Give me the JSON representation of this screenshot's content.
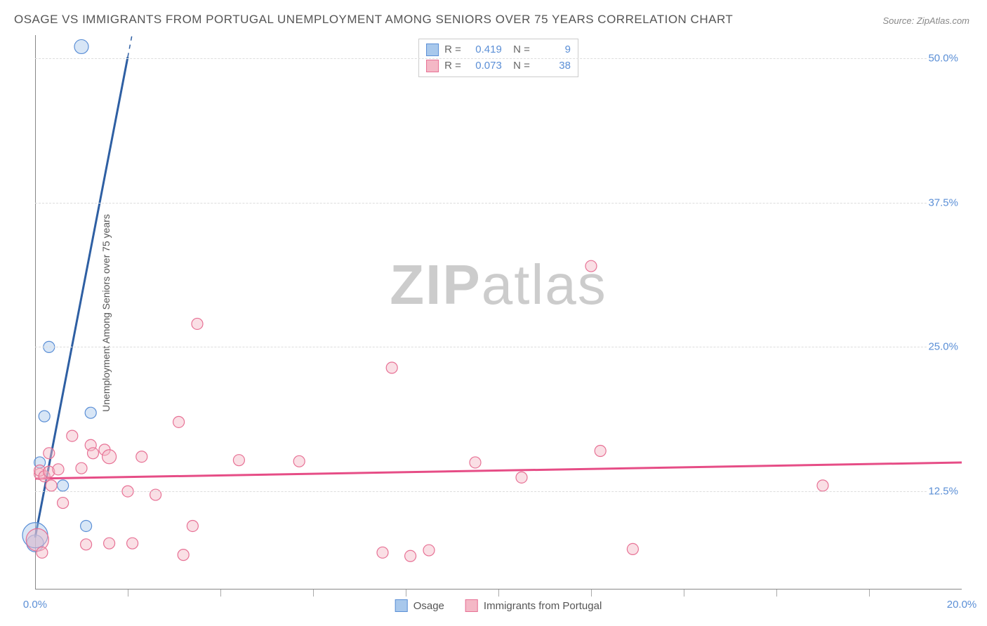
{
  "title": "OSAGE VS IMMIGRANTS FROM PORTUGAL UNEMPLOYMENT AMONG SENIORS OVER 75 YEARS CORRELATION CHART",
  "source": "Source: ZipAtlas.com",
  "ylabel": "Unemployment Among Seniors over 75 years",
  "watermark_a": "ZIP",
  "watermark_b": "atlas",
  "chart": {
    "type": "scatter",
    "xlim": [
      0,
      20
    ],
    "ylim": [
      4,
      52
    ],
    "x_ticks_major": [
      0,
      20
    ],
    "x_ticks_major_labels": [
      "0.0%",
      "20.0%"
    ],
    "x_ticks_minor": [
      2,
      4,
      6,
      8,
      10,
      12,
      14,
      16,
      18
    ],
    "y_ticks": [
      12.5,
      25.0,
      37.5,
      50.0
    ],
    "y_tick_labels": [
      "12.5%",
      "25.0%",
      "37.5%",
      "50.0%"
    ],
    "grid_color": "#dddddd",
    "axis_color": "#888888",
    "tick_label_color": "#5b8fd6",
    "background_color": "#ffffff",
    "series": [
      {
        "name": "Osage",
        "color_fill": "#a8c8ec",
        "color_stroke": "#5b8fd6",
        "fill_opacity": 0.45,
        "trend": {
          "slope": 20.8,
          "intercept": 8.5,
          "color": "#2e5fa3",
          "width": 3,
          "dash_after_x": 2.0
        },
        "R": 0.419,
        "N": 9,
        "points": [
          {
            "x": 0.0,
            "y": 8.0,
            "r": 12
          },
          {
            "x": 0.0,
            "y": 8.7,
            "r": 18
          },
          {
            "x": 0.1,
            "y": 15.0,
            "r": 8
          },
          {
            "x": 0.2,
            "y": 19.0,
            "r": 8
          },
          {
            "x": 0.3,
            "y": 25.0,
            "r": 8
          },
          {
            "x": 0.6,
            "y": 13.0,
            "r": 8
          },
          {
            "x": 1.1,
            "y": 9.5,
            "r": 8
          },
          {
            "x": 1.2,
            "y": 19.3,
            "r": 8
          },
          {
            "x": 1.0,
            "y": 51.0,
            "r": 10
          }
        ]
      },
      {
        "name": "Immigrants from Portugal",
        "color_fill": "#f4b8c6",
        "color_stroke": "#e77195",
        "fill_opacity": 0.45,
        "trend": {
          "slope": 0.07,
          "intercept": 13.6,
          "color": "#e64d86",
          "width": 3
        },
        "R": 0.073,
        "N": 38,
        "points": [
          {
            "x": 0.05,
            "y": 8.3,
            "r": 16
          },
          {
            "x": 0.1,
            "y": 14.0,
            "r": 8
          },
          {
            "x": 0.1,
            "y": 14.3,
            "r": 8
          },
          {
            "x": 0.15,
            "y": 7.2,
            "r": 8
          },
          {
            "x": 0.2,
            "y": 13.8,
            "r": 8
          },
          {
            "x": 0.3,
            "y": 14.2,
            "r": 8
          },
          {
            "x": 0.3,
            "y": 15.8,
            "r": 8
          },
          {
            "x": 0.35,
            "y": 13.0,
            "r": 8
          },
          {
            "x": 0.5,
            "y": 14.4,
            "r": 8
          },
          {
            "x": 0.6,
            "y": 11.5,
            "r": 8
          },
          {
            "x": 0.8,
            "y": 17.3,
            "r": 8
          },
          {
            "x": 1.0,
            "y": 14.5,
            "r": 8
          },
          {
            "x": 1.1,
            "y": 7.9,
            "r": 8
          },
          {
            "x": 1.2,
            "y": 16.5,
            "r": 8
          },
          {
            "x": 1.25,
            "y": 15.8,
            "r": 8
          },
          {
            "x": 1.5,
            "y": 16.1,
            "r": 8
          },
          {
            "x": 1.6,
            "y": 8.0,
            "r": 8
          },
          {
            "x": 1.6,
            "y": 15.5,
            "r": 10
          },
          {
            "x": 2.0,
            "y": 12.5,
            "r": 8
          },
          {
            "x": 2.1,
            "y": 8.0,
            "r": 8
          },
          {
            "x": 2.3,
            "y": 15.5,
            "r": 8
          },
          {
            "x": 2.6,
            "y": 12.2,
            "r": 8
          },
          {
            "x": 3.1,
            "y": 18.5,
            "r": 8
          },
          {
            "x": 3.2,
            "y": 7.0,
            "r": 8
          },
          {
            "x": 3.4,
            "y": 9.5,
            "r": 8
          },
          {
            "x": 3.5,
            "y": 27.0,
            "r": 8
          },
          {
            "x": 4.4,
            "y": 15.2,
            "r": 8
          },
          {
            "x": 5.7,
            "y": 15.1,
            "r": 8
          },
          {
            "x": 7.5,
            "y": 7.2,
            "r": 8
          },
          {
            "x": 7.7,
            "y": 23.2,
            "r": 8
          },
          {
            "x": 8.1,
            "y": 6.9,
            "r": 8
          },
          {
            "x": 8.5,
            "y": 7.4,
            "r": 8
          },
          {
            "x": 9.5,
            "y": 15.0,
            "r": 8
          },
          {
            "x": 10.5,
            "y": 13.7,
            "r": 8
          },
          {
            "x": 12.0,
            "y": 32.0,
            "r": 8
          },
          {
            "x": 12.2,
            "y": 16.0,
            "r": 8
          },
          {
            "x": 12.9,
            "y": 7.5,
            "r": 8
          },
          {
            "x": 17.0,
            "y": 13.0,
            "r": 8
          }
        ]
      }
    ]
  },
  "legend_bottom": {
    "items": [
      {
        "label": "Osage",
        "fill": "#a8c8ec",
        "stroke": "#5b8fd6"
      },
      {
        "label": "Immigrants from Portugal",
        "fill": "#f4b8c6",
        "stroke": "#e77195"
      }
    ]
  }
}
